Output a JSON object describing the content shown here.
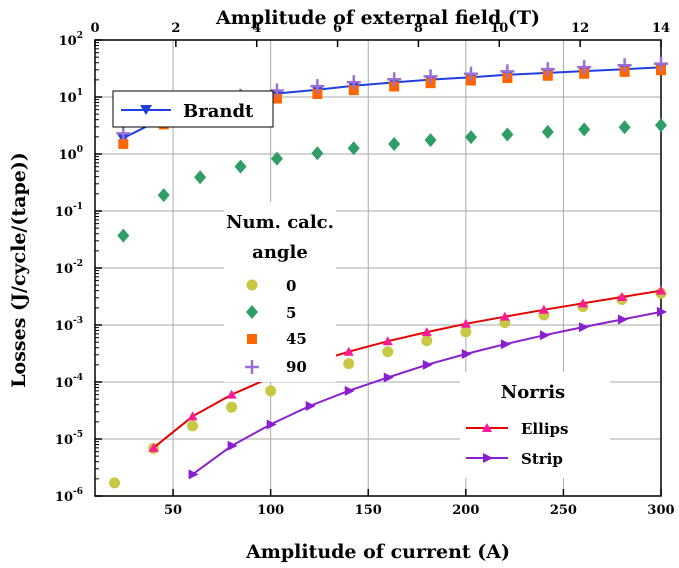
{
  "chart_data": {
    "type": "scatter",
    "xlabel": "Amplitude of current (A)",
    "x2label": "Amplitude of external  field (T)",
    "ylabel": "Losses (J/cycle/(tape))",
    "xlim": [
      10,
      300
    ],
    "x_ticks": [
      50,
      100,
      150,
      200,
      250,
      300
    ],
    "x2lim": [
      0,
      14
    ],
    "x2_ticks": [
      0,
      2,
      4,
      6,
      8,
      10,
      12,
      14
    ],
    "y_scale": "log",
    "ylim": [
      1e-06,
      100
    ],
    "y_ticks": [
      {
        "value": 1e-06,
        "base": "10",
        "exp": "-6"
      },
      {
        "value": 1e-05,
        "base": "10",
        "exp": "-5"
      },
      {
        "value": 0.0001,
        "base": "10",
        "exp": "-4"
      },
      {
        "value": 0.001,
        "base": "10",
        "exp": "-3"
      },
      {
        "value": 0.01,
        "base": "10",
        "exp": "-2"
      },
      {
        "value": 0.1,
        "base": "10",
        "exp": "-1"
      },
      {
        "value": 1,
        "base": "10",
        "exp": "0"
      },
      {
        "value": 10,
        "base": "10",
        "exp": "1"
      },
      {
        "value": 100,
        "base": "10",
        "exp": "2"
      }
    ],
    "grid": true,
    "legends": {
      "brandt": {
        "label": "Brandt",
        "placement": "top-left"
      },
      "num": {
        "title_lines": [
          "Num. calc.",
          "angle"
        ],
        "placement": "center-left"
      },
      "norris": {
        "title": "Norris",
        "placement": "bottom-right"
      }
    },
    "series": [
      {
        "name": "Brandt",
        "axis": "top",
        "kind": "line",
        "color": "#1f3fe0",
        "marker": "triangle-down",
        "x": [
          0.7,
          1.7,
          2.6,
          3.6,
          4.5,
          5.5,
          6.4,
          7.4,
          8.3,
          9.3,
          10.2,
          11.2,
          12.1,
          13.1,
          14.0
        ],
        "y": [
          1.9,
          4.3,
          6.8,
          9.1,
          11.5,
          13.4,
          15.7,
          18.0,
          20.2,
          22.2,
          24.5,
          26.5,
          28.5,
          30.7,
          33.0
        ]
      },
      {
        "name": "0",
        "axis": "bottom",
        "kind": "scatter",
        "color": "#c8c845",
        "marker": "circle",
        "x": [
          20,
          40,
          60,
          80,
          100,
          120,
          140,
          160,
          180,
          200,
          220,
          240,
          260,
          280,
          300
        ],
        "y": [
          1.7e-06,
          6.8e-06,
          1.7e-05,
          3.6e-05,
          7e-05,
          0.000125,
          0.00021,
          0.00034,
          0.00053,
          0.00076,
          0.0011,
          0.0015,
          0.0021,
          0.0028,
          0.0036
        ]
      },
      {
        "name": "5",
        "axis": "top",
        "kind": "scatter",
        "color": "#2e9e66",
        "marker": "diamond",
        "x": [
          0.7,
          1.7,
          2.6,
          3.6,
          4.5,
          5.5,
          6.4,
          7.4,
          8.3,
          9.3,
          10.2,
          11.2,
          12.1,
          13.1,
          14.0
        ],
        "y": [
          0.037,
          0.19,
          0.39,
          0.6,
          0.83,
          1.03,
          1.26,
          1.5,
          1.75,
          1.98,
          2.2,
          2.45,
          2.7,
          2.95,
          3.2
        ]
      },
      {
        "name": "45",
        "axis": "top",
        "kind": "scatter",
        "color": "#ff6600",
        "marker": "square",
        "x": [
          0.7,
          1.7,
          2.6,
          3.6,
          4.5,
          5.5,
          6.4,
          7.4,
          8.3,
          9.3,
          10.2,
          11.2,
          12.1,
          13.1,
          14.0
        ],
        "y": [
          1.5,
          3.3,
          5.4,
          7.4,
          9.4,
          11.3,
          13.2,
          15.3,
          17.5,
          19.5,
          21.5,
          23.6,
          25.6,
          27.6,
          29.5
        ]
      },
      {
        "name": "90",
        "axis": "top",
        "kind": "scatter",
        "color": "#9b6fd4",
        "marker": "plus",
        "x": [
          0.7,
          1.7,
          2.6,
          3.6,
          4.5,
          5.5,
          6.4,
          7.4,
          8.3,
          9.3,
          10.2,
          11.2,
          12.1,
          13.1,
          14.0
        ],
        "y": [
          2.3,
          5.1,
          7.8,
          10.5,
          13.0,
          15.5,
          18.1,
          20.5,
          23.0,
          25.6,
          28.2,
          30.8,
          33.5,
          36.0,
          38.5
        ]
      },
      {
        "name": "Ellips",
        "axis": "bottom",
        "kind": "line",
        "color": "#e60000",
        "marker": "triangle-up",
        "marker_color": "#ff1a9c",
        "x": [
          40,
          60,
          80,
          100,
          120,
          140,
          160,
          180,
          200,
          220,
          240,
          260,
          280,
          300
        ],
        "y": [
          7e-06,
          2.5e-05,
          6e-05,
          0.00012,
          0.00021,
          0.00034,
          0.00052,
          0.00075,
          0.00105,
          0.0014,
          0.00185,
          0.0024,
          0.0031,
          0.004
        ]
      },
      {
        "name": "Strip",
        "axis": "bottom",
        "kind": "line",
        "color": "#8a1fd0",
        "marker": "triangle-right",
        "x": [
          60,
          80,
          100,
          120,
          140,
          160,
          180,
          200,
          220,
          240,
          260,
          280,
          300
        ],
        "y": [
          2.4e-06,
          7.6e-06,
          1.8e-05,
          3.8e-05,
          7e-05,
          0.00012,
          0.0002,
          0.00031,
          0.00046,
          0.00066,
          0.00092,
          0.00125,
          0.0017
        ]
      }
    ]
  }
}
